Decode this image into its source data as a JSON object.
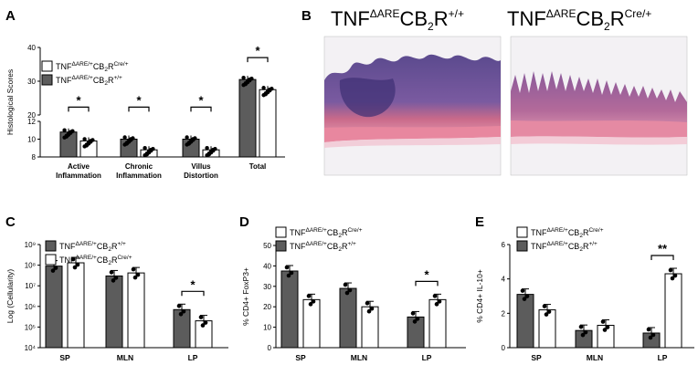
{
  "panel_letters": {
    "A": "A",
    "B": "B",
    "C": "C",
    "D": "D",
    "E": "E"
  },
  "colors": {
    "ko": "#ffffff",
    "wt": "#5c5c5c",
    "stroke": "#000000"
  },
  "labels": {
    "ko_base": "TNF",
    "ko_sup": "ΔARE/+",
    "ko_mid": "CB",
    "ko_sub": "2",
    "ko_r": "R",
    "ko_sup2": "Cre/+",
    "wt_base": "TNF",
    "wt_sup": "ΔARE/+",
    "wt_mid": "CB",
    "wt_sub": "2",
    "wt_r": "R",
    "wt_sup2": "+/+"
  },
  "panel_b": {
    "left_base": "TNF",
    "left_sup": "ΔARE",
    "left_mid": "CB",
    "left_sub": "2",
    "left_r": "R",
    "left_sup2": "+/+",
    "right_base": "TNF",
    "right_sup": "ΔARE",
    "right_mid": "CB",
    "right_sub": "2",
    "right_r": "R",
    "right_sup2": "Cre/+"
  },
  "chart_data": [
    {
      "id": "A",
      "type": "bar",
      "ylabel": "Histological Scores",
      "yticks": [
        "8",
        "10",
        "12",
        "20",
        "30",
        "40"
      ],
      "categories": [
        "Active\nInflammation",
        "Chronic\nInflammation",
        "Villus\nDistortion",
        "Total"
      ],
      "series": [
        {
          "name": "TNFΔARE/+CB2R+/+",
          "values": [
            10.8,
            10.0,
            10.0,
            30.5
          ]
        },
        {
          "name": "TNFΔARE/+CB2RCre/+",
          "values": [
            9.8,
            8.8,
            8.8,
            27.5
          ]
        }
      ],
      "significance": [
        "*",
        "*",
        "*",
        "*"
      ],
      "legend_order": [
        "TNFΔARE/+CB2RCre/+",
        "TNFΔARE/+CB2R+/+"
      ]
    },
    {
      "id": "C",
      "type": "bar",
      "ylabel": "Log (Cellularity)",
      "yscale": "log",
      "yticks": [
        "10⁴",
        "10⁵",
        "10⁶",
        "10⁷",
        "10⁸",
        "10⁹"
      ],
      "categories": [
        "SP",
        "MLN",
        "LP"
      ],
      "series": [
        {
          "name": "TNFΔARE/+CB2R+/+",
          "values": [
            90000000,
            30000000,
            700000
          ]
        },
        {
          "name": "TNFΔARE/+CB2RCre/+",
          "values": [
            130000000,
            42000000,
            200000
          ]
        }
      ],
      "significance": [
        "",
        "",
        "*"
      ],
      "legend_order": [
        "TNFΔARE/+CB2R+/+",
        "TNFΔARE/+CB2RCre/+"
      ]
    },
    {
      "id": "D",
      "type": "bar",
      "ylabel": "% CD4+ FoxP3+",
      "yticks": [
        "0",
        "10",
        "20",
        "30",
        "40",
        "50"
      ],
      "ylim": [
        0,
        50
      ],
      "categories": [
        "SP",
        "MLN",
        "LP"
      ],
      "series": [
        {
          "name": "TNFΔARE/+CB2R+/+",
          "values": [
            37.5,
            29,
            15
          ]
        },
        {
          "name": "TNFΔARE/+CB2RCre/+",
          "values": [
            23.5,
            20,
            23.5
          ]
        }
      ],
      "significance": [
        "",
        "",
        "*"
      ],
      "legend_order": [
        "TNFΔARE/+CB2RCre/+",
        "TNFΔARE/+CB2R+/+"
      ]
    },
    {
      "id": "E",
      "type": "bar",
      "ylabel": "% CD4+ IL-10+",
      "yticks": [
        "0",
        "2",
        "4",
        "6"
      ],
      "ylim": [
        0,
        6
      ],
      "categories": [
        "SP",
        "MLN",
        "LP"
      ],
      "series": [
        {
          "name": "TNFΔARE/+CB2R+/+",
          "values": [
            3.1,
            1.0,
            0.85
          ]
        },
        {
          "name": "TNFΔARE/+CB2RCre/+",
          "values": [
            2.2,
            1.3,
            4.3
          ]
        }
      ],
      "significance": [
        "",
        "",
        "**"
      ],
      "legend_order": [
        "TNFΔARE/+CB2RCre/+",
        "TNFΔARE/+CB2R+/+"
      ]
    }
  ]
}
